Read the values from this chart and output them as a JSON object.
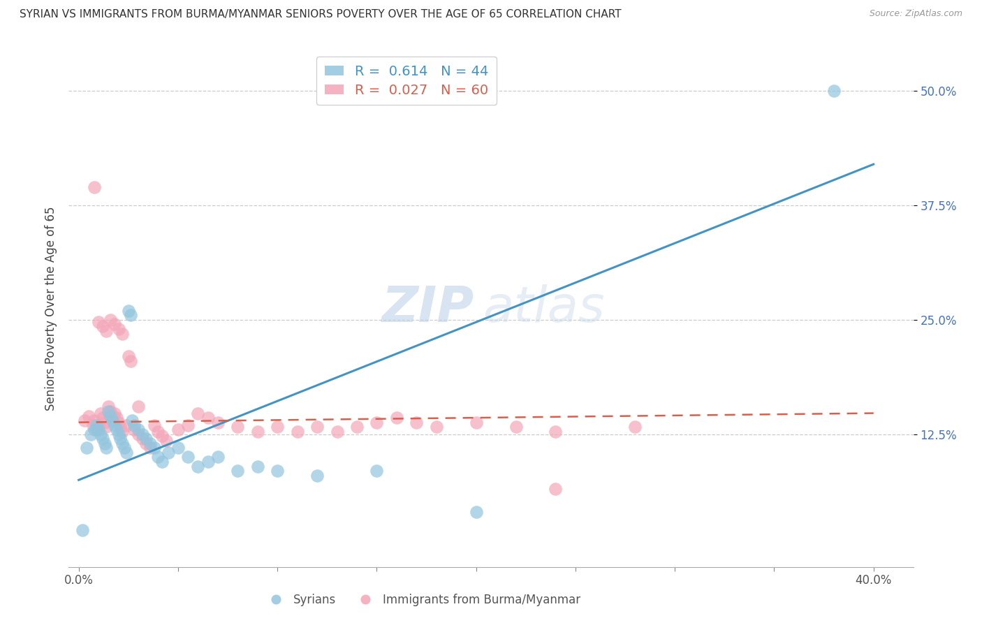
{
  "title": "SYRIAN VS IMMIGRANTS FROM BURMA/MYANMAR SENIORS POVERTY OVER THE AGE OF 65 CORRELATION CHART",
  "source": "Source: ZipAtlas.com",
  "ylabel": "Seniors Poverty Over the Age of 65",
  "xlabel_ticks": [
    "0.0%",
    "",
    "",
    "",
    "",
    "",
    "",
    "",
    "40.0%"
  ],
  "xlabel_vals": [
    0.0,
    0.05,
    0.1,
    0.15,
    0.2,
    0.25,
    0.3,
    0.35,
    0.4
  ],
  "ylabel_ticks": [
    "12.5%",
    "25.0%",
    "37.5%",
    "50.0%"
  ],
  "ylabel_vals": [
    0.125,
    0.25,
    0.375,
    0.5
  ],
  "xlim": [
    -0.005,
    0.42
  ],
  "ylim": [
    -0.02,
    0.545
  ],
  "legend_blue_r": "0.614",
  "legend_blue_n": "44",
  "legend_pink_r": "0.027",
  "legend_pink_n": "60",
  "legend_blue_label": "Syrians",
  "legend_pink_label": "Immigrants from Burma/Myanmar",
  "blue_color": "#92c5de",
  "pink_color": "#f4a6b8",
  "trendline_blue_color": "#4393c3",
  "trendline_pink_color": "#d6604d",
  "watermark_zip": "ZIP",
  "watermark_atlas": "atlas",
  "background_color": "#ffffff",
  "grid_color": "#cccccc",
  "blue_scatter_x": [
    0.002,
    0.004,
    0.006,
    0.008,
    0.009,
    0.01,
    0.011,
    0.012,
    0.013,
    0.014,
    0.015,
    0.016,
    0.017,
    0.018,
    0.019,
    0.02,
    0.021,
    0.022,
    0.023,
    0.024,
    0.025,
    0.026,
    0.027,
    0.028,
    0.03,
    0.032,
    0.034,
    0.036,
    0.038,
    0.04,
    0.042,
    0.045,
    0.05,
    0.055,
    0.06,
    0.065,
    0.07,
    0.08,
    0.09,
    0.1,
    0.12,
    0.15,
    0.2,
    0.38
  ],
  "blue_scatter_y": [
    0.02,
    0.11,
    0.125,
    0.13,
    0.135,
    0.13,
    0.125,
    0.12,
    0.115,
    0.11,
    0.15,
    0.145,
    0.14,
    0.135,
    0.13,
    0.125,
    0.12,
    0.115,
    0.11,
    0.105,
    0.26,
    0.255,
    0.14,
    0.135,
    0.13,
    0.125,
    0.12,
    0.115,
    0.11,
    0.1,
    0.095,
    0.105,
    0.11,
    0.1,
    0.09,
    0.095,
    0.1,
    0.085,
    0.09,
    0.085,
    0.08,
    0.085,
    0.04,
    0.5
  ],
  "pink_scatter_x": [
    0.003,
    0.005,
    0.007,
    0.008,
    0.009,
    0.01,
    0.011,
    0.012,
    0.013,
    0.014,
    0.015,
    0.016,
    0.017,
    0.018,
    0.019,
    0.02,
    0.021,
    0.022,
    0.024,
    0.025,
    0.026,
    0.028,
    0.03,
    0.032,
    0.034,
    0.036,
    0.038,
    0.04,
    0.042,
    0.044,
    0.05,
    0.055,
    0.06,
    0.065,
    0.07,
    0.08,
    0.09,
    0.1,
    0.11,
    0.12,
    0.13,
    0.14,
    0.15,
    0.16,
    0.17,
    0.18,
    0.2,
    0.22,
    0.24,
    0.28,
    0.008,
    0.01,
    0.012,
    0.014,
    0.016,
    0.018,
    0.02,
    0.022,
    0.03,
    0.24
  ],
  "pink_scatter_y": [
    0.14,
    0.145,
    0.135,
    0.14,
    0.13,
    0.135,
    0.148,
    0.143,
    0.138,
    0.133,
    0.155,
    0.15,
    0.145,
    0.148,
    0.143,
    0.138,
    0.133,
    0.128,
    0.135,
    0.21,
    0.205,
    0.13,
    0.125,
    0.12,
    0.115,
    0.11,
    0.135,
    0.128,
    0.123,
    0.118,
    0.13,
    0.135,
    0.148,
    0.143,
    0.138,
    0.133,
    0.128,
    0.133,
    0.128,
    0.133,
    0.128,
    0.133,
    0.138,
    0.143,
    0.138,
    0.133,
    0.138,
    0.133,
    0.128,
    0.133,
    0.395,
    0.248,
    0.243,
    0.238,
    0.25,
    0.245,
    0.24,
    0.235,
    0.155,
    0.065
  ],
  "blue_trendline_x": [
    0.0,
    0.4
  ],
  "blue_trendline_y": [
    0.075,
    0.42
  ],
  "pink_trendline_x": [
    0.0,
    0.4
  ],
  "pink_trendline_y": [
    0.138,
    0.148
  ]
}
